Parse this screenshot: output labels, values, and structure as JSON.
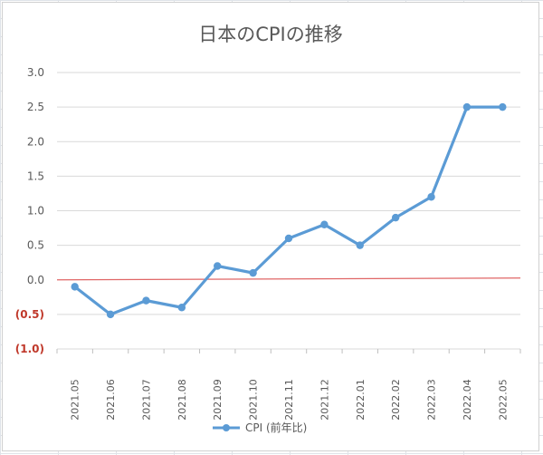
{
  "chart_data": {
    "type": "line",
    "title": "日本のCPIの推移",
    "x": [
      "2021.05",
      "2021.06",
      "2021.07",
      "2021.08",
      "2021.09",
      "2021.10",
      "2021.11",
      "2021.12",
      "2022.01",
      "2022.02",
      "2022.03",
      "2022.04",
      "2022.05"
    ],
    "series": [
      {
        "name": "CPI (前年比)",
        "values": [
          -0.1,
          -0.5,
          -0.3,
          -0.4,
          0.2,
          0.1,
          0.6,
          0.8,
          0.5,
          0.9,
          1.2,
          2.5,
          2.5
        ],
        "color": "#5b9bd5"
      }
    ],
    "yticks": [
      {
        "value": 3.0,
        "label": "3.0"
      },
      {
        "value": 2.5,
        "label": "2.5"
      },
      {
        "value": 2.0,
        "label": "2.0"
      },
      {
        "value": 1.5,
        "label": "1.5"
      },
      {
        "value": 1.0,
        "label": "1.0"
      },
      {
        "value": 0.5,
        "label": "0.5"
      },
      {
        "value": 0.0,
        "label": "0.0"
      },
      {
        "value": -0.5,
        "label": "(0.5)"
      },
      {
        "value": -1.0,
        "label": "(1.0)"
      }
    ],
    "ylim": [
      -1.0,
      3.0
    ],
    "zero_line_color": "#e06666",
    "negative_label_color": "#c0392b",
    "grid": true,
    "legend_position": "bottom"
  }
}
